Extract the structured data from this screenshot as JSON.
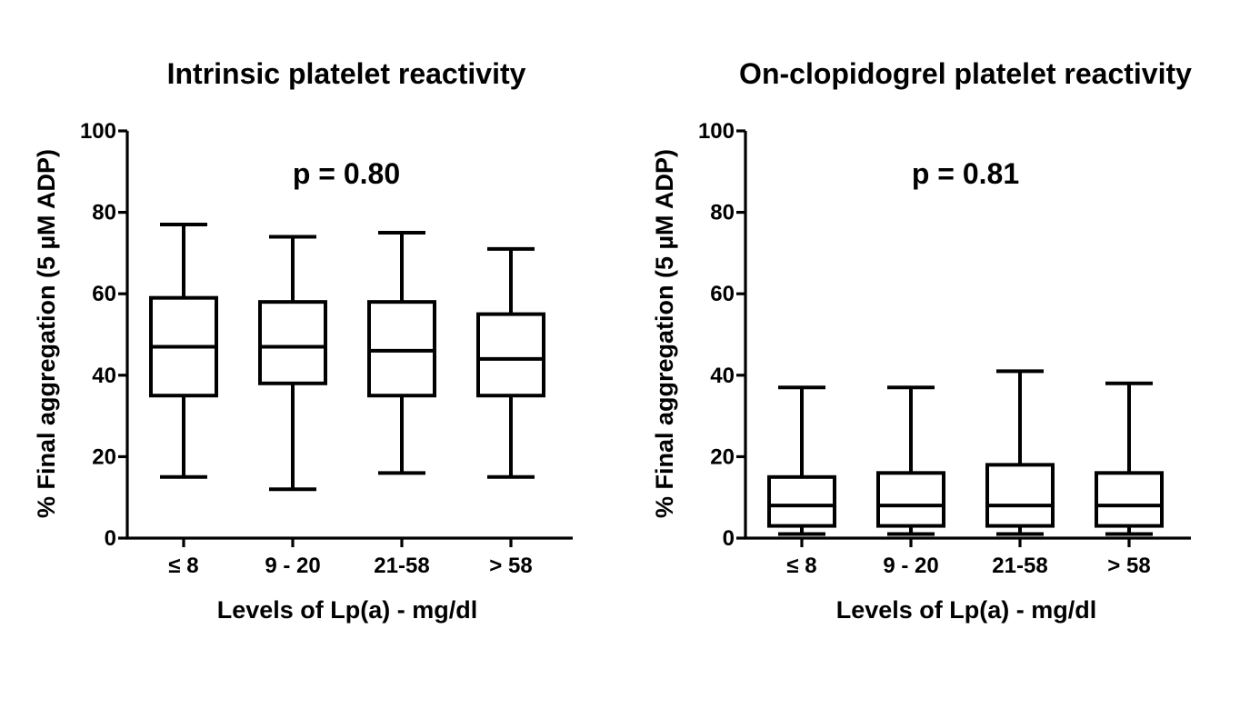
{
  "chart_data": [
    {
      "type": "box",
      "title": "Intrinsic platelet reactivity",
      "annotation": "p = 0.80",
      "xlabel": "Levels of Lp(a) - mg/dl",
      "ylabel": "% Final aggregation (5 µM ADP)",
      "ylim": [
        0,
        100
      ],
      "yticks": [
        "0",
        "20",
        "40",
        "60",
        "80",
        "100"
      ],
      "categories": [
        "≤ 8",
        "9 - 20",
        "21-58",
        "> 58"
      ],
      "boxes": [
        {
          "min": 15,
          "q1": 35,
          "median": 47,
          "q3": 59,
          "max": 77
        },
        {
          "min": 12,
          "q1": 38,
          "median": 47,
          "q3": 58,
          "max": 74
        },
        {
          "min": 16,
          "q1": 35,
          "median": 46,
          "q3": 58,
          "max": 75
        },
        {
          "min": 15,
          "q1": 35,
          "median": 44,
          "q3": 55,
          "max": 71
        }
      ]
    },
    {
      "type": "box",
      "title": "On-clopidogrel platelet reactivity",
      "annotation": "p = 0.81",
      "xlabel": "Levels of Lp(a) - mg/dl",
      "ylabel": "% Final aggregation (5 µM ADP)",
      "ylim": [
        0,
        100
      ],
      "yticks": [
        "0",
        "20",
        "40",
        "60",
        "80",
        "100"
      ],
      "categories": [
        "≤ 8",
        "9 - 20",
        "21-58",
        "> 58"
      ],
      "boxes": [
        {
          "min": 1,
          "q1": 3,
          "median": 8,
          "q3": 15,
          "max": 37
        },
        {
          "min": 1,
          "q1": 3,
          "median": 8,
          "q3": 16,
          "max": 37
        },
        {
          "min": 1,
          "q1": 3,
          "median": 8,
          "q3": 18,
          "max": 41
        },
        {
          "min": 1,
          "q1": 3,
          "median": 8,
          "q3": 16,
          "max": 38
        }
      ]
    }
  ]
}
